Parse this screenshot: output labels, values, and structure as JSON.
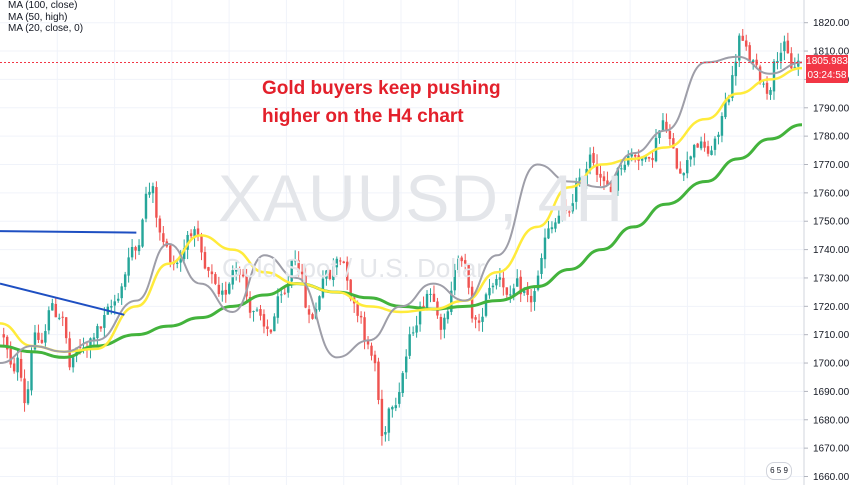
{
  "legend": {
    "ma_100": "MA (100, close)",
    "ma_50": "MA (50, high)",
    "ma_20": "MA (20, close, 0)"
  },
  "annotation": {
    "line1": "Gold buyers keep pushing",
    "line2": "higher on the H4 chart"
  },
  "watermark": {
    "symbol": "XAUUSD, 4H",
    "subtitle": "Gold Spot / U.S. Dollar"
  },
  "badge": "6 5 9",
  "colors": {
    "up": "#26a69a",
    "down": "#ef5350",
    "ma100": "#43b33c",
    "ma50": "#ffeb3b",
    "ma20": "#9e9ea8",
    "trendline": "#1e4fc2",
    "price_line": "#f23645",
    "annotation": "#e3202b"
  },
  "chart_data": {
    "type": "candlestick",
    "ylim": [
      1657,
      1828
    ],
    "y_ticks": [
      1660,
      1670,
      1680,
      1690,
      1700,
      1710,
      1720,
      1730,
      1740,
      1750,
      1760,
      1770,
      1780,
      1790,
      1800,
      1810,
      1820
    ],
    "last_price": 1805.983,
    "last_price_label": "1805.983",
    "countdown_label": "03:24:58",
    "anchors": [
      [
        1710,
        1697
      ],
      [
        1701,
        1683
      ],
      [
        1713,
        1703
      ],
      [
        1720,
        1718
      ],
      [
        1716,
        1696
      ],
      [
        1707,
        1703
      ],
      [
        1710,
        1712
      ],
      [
        1718,
        1722
      ],
      [
        1728,
        1739
      ],
      [
        1740,
        1758
      ],
      [
        1762,
        1745
      ],
      [
        1740,
        1735
      ],
      [
        1738,
        1748
      ],
      [
        1744,
        1733
      ],
      [
        1730,
        1722
      ],
      [
        1726,
        1735
      ],
      [
        1733,
        1720
      ],
      [
        1718,
        1712
      ],
      [
        1712,
        1722
      ],
      [
        1724,
        1740
      ],
      [
        1732,
        1715
      ],
      [
        1718,
        1731
      ],
      [
        1730,
        1738
      ],
      [
        1735,
        1720
      ],
      [
        1718,
        1705
      ],
      [
        1700,
        1672
      ],
      [
        1686,
        1688
      ],
      [
        1700,
        1712
      ],
      [
        1718,
        1725
      ],
      [
        1724,
        1712
      ],
      [
        1718,
        1740
      ],
      [
        1736,
        1718
      ],
      [
        1712,
        1726
      ],
      [
        1729,
        1732
      ],
      [
        1720,
        1728
      ],
      [
        1725,
        1722
      ],
      [
        1730,
        1745
      ],
      [
        1748,
        1753
      ],
      [
        1752,
        1762
      ],
      [
        1764,
        1775
      ],
      [
        1768,
        1762
      ],
      [
        1760,
        1770
      ],
      [
        1772,
        1774
      ],
      [
        1772,
        1770
      ],
      [
        1780,
        1785
      ],
      [
        1775,
        1768
      ],
      [
        1770,
        1778
      ],
      [
        1776,
        1774
      ],
      [
        1778,
        1790
      ],
      [
        1798,
        1815
      ],
      [
        1810,
        1805
      ],
      [
        1800,
        1795
      ],
      [
        1808,
        1812
      ],
      [
        1805,
        1806
      ]
    ],
    "moving_averages": [
      {
        "name": "MA (100, close)",
        "color_key": "ma100",
        "points": [
          [
            0,
            1706
          ],
          [
            0.04,
            1704
          ],
          [
            0.08,
            1702
          ],
          [
            0.12,
            1706
          ],
          [
            0.17,
            1710
          ],
          [
            0.21,
            1713
          ],
          [
            0.25,
            1716
          ],
          [
            0.29,
            1720
          ],
          [
            0.33,
            1724
          ],
          [
            0.37,
            1728
          ],
          [
            0.42,
            1725
          ],
          [
            0.46,
            1723
          ],
          [
            0.5,
            1720
          ],
          [
            0.54,
            1719
          ],
          [
            0.58,
            1720
          ],
          [
            0.62,
            1722
          ],
          [
            0.67,
            1727
          ],
          [
            0.71,
            1733
          ],
          [
            0.75,
            1740
          ],
          [
            0.79,
            1748
          ],
          [
            0.83,
            1756
          ],
          [
            0.88,
            1764
          ],
          [
            0.92,
            1772
          ],
          [
            0.96,
            1779
          ],
          [
            1.0,
            1784
          ]
        ]
      },
      {
        "name": "MA (50, high)",
        "color_key": "ma50",
        "points": [
          [
            0,
            1714
          ],
          [
            0.04,
            1706
          ],
          [
            0.08,
            1704
          ],
          [
            0.12,
            1705
          ],
          [
            0.17,
            1720
          ],
          [
            0.21,
            1735
          ],
          [
            0.25,
            1745
          ],
          [
            0.29,
            1740
          ],
          [
            0.33,
            1732
          ],
          [
            0.37,
            1728
          ],
          [
            0.42,
            1725
          ],
          [
            0.46,
            1720
          ],
          [
            0.5,
            1718
          ],
          [
            0.54,
            1719
          ],
          [
            0.58,
            1722
          ],
          [
            0.62,
            1732
          ],
          [
            0.67,
            1748
          ],
          [
            0.71,
            1762
          ],
          [
            0.75,
            1770
          ],
          [
            0.79,
            1772
          ],
          [
            0.83,
            1776
          ],
          [
            0.88,
            1786
          ],
          [
            0.92,
            1795
          ],
          [
            0.96,
            1800
          ],
          [
            1.0,
            1804
          ]
        ]
      },
      {
        "name": "MA (20, close, 0)",
        "color_key": "ma20",
        "points": [
          [
            0,
            1700
          ],
          [
            0.04,
            1706
          ],
          [
            0.08,
            1704
          ],
          [
            0.12,
            1708
          ],
          [
            0.17,
            1722
          ],
          [
            0.21,
            1742
          ],
          [
            0.25,
            1728
          ],
          [
            0.29,
            1718
          ],
          [
            0.33,
            1738
          ],
          [
            0.37,
            1730
          ],
          [
            0.42,
            1702
          ],
          [
            0.46,
            1708
          ],
          [
            0.5,
            1720
          ],
          [
            0.54,
            1728
          ],
          [
            0.58,
            1722
          ],
          [
            0.62,
            1738
          ],
          [
            0.67,
            1770
          ],
          [
            0.71,
            1764
          ],
          [
            0.75,
            1762
          ],
          [
            0.79,
            1774
          ],
          [
            0.83,
            1782
          ],
          [
            0.88,
            1806
          ],
          [
            0.92,
            1808
          ],
          [
            0.96,
            1802
          ],
          [
            1.0,
            1806
          ]
        ]
      }
    ],
    "trendlines": [
      {
        "color_key": "trendline",
        "from": [
          0,
          1746.5
        ],
        "to": [
          0.17,
          1746
        ]
      },
      {
        "color_key": "trendline",
        "from": [
          0,
          1728
        ],
        "to": [
          0.155,
          1717
        ]
      }
    ]
  }
}
